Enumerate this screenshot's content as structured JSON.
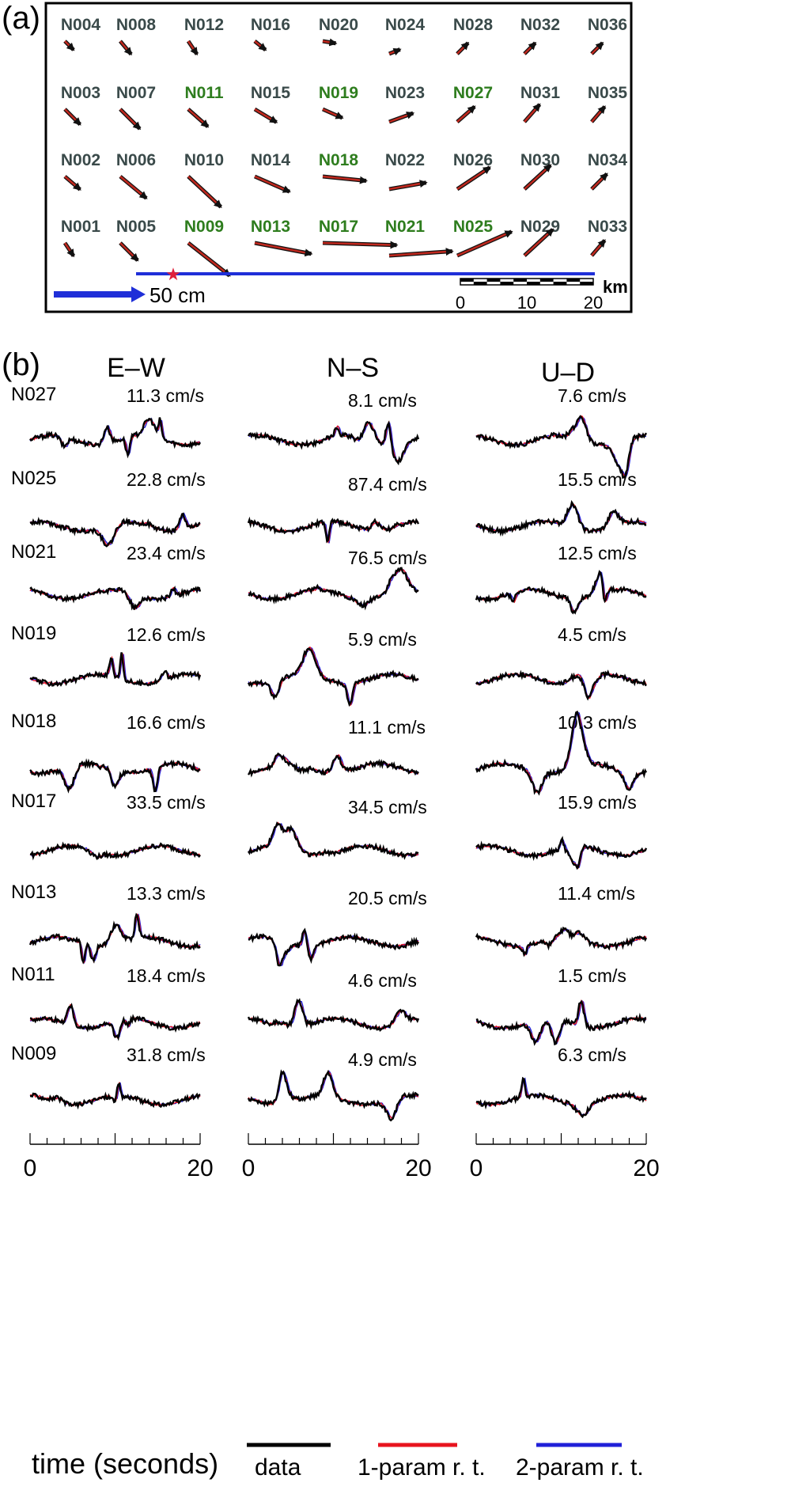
{
  "panel_a": {
    "label": "(a)",
    "colors": {
      "default_station": "#3a4a4a",
      "highlight_station": "#2e7d1e",
      "arrow_fill": "#c0281e",
      "arrow_edge": "#111111",
      "fault": "#1f2fd8",
      "epicenter": "#e0203a"
    },
    "stations": [
      {
        "name": "N004",
        "col": 0,
        "row": 0,
        "hl": false,
        "dx": 0.2,
        "dy": 0.2
      },
      {
        "name": "N008",
        "col": 1,
        "row": 0,
        "hl": false,
        "dx": 0.25,
        "dy": 0.3
      },
      {
        "name": "N012",
        "col": 2,
        "row": 0,
        "hl": false,
        "dx": 0.2,
        "dy": 0.3
      },
      {
        "name": "N016",
        "col": 3,
        "row": 0,
        "hl": false,
        "dx": 0.25,
        "dy": 0.2
      },
      {
        "name": "N020",
        "col": 4,
        "row": 0,
        "hl": false,
        "dx": 0.3,
        "dy": 0.05
      },
      {
        "name": "N024",
        "col": 5,
        "row": 0,
        "hl": false,
        "dx": 0.25,
        "dy": -0.1
      },
      {
        "name": "N028",
        "col": 6,
        "row": 0,
        "hl": false,
        "dx": 0.25,
        "dy": -0.25
      },
      {
        "name": "N032",
        "col": 7,
        "row": 0,
        "hl": false,
        "dx": 0.25,
        "dy": -0.25
      },
      {
        "name": "N036",
        "col": 8,
        "row": 0,
        "hl": false,
        "dx": 0.25,
        "dy": -0.25
      },
      {
        "name": "N003",
        "col": 0,
        "row": 1,
        "hl": false,
        "dx": 0.35,
        "dy": 0.35
      },
      {
        "name": "N007",
        "col": 1,
        "row": 1,
        "hl": false,
        "dx": 0.45,
        "dy": 0.45
      },
      {
        "name": "N011",
        "col": 2,
        "row": 1,
        "hl": true,
        "dx": 0.45,
        "dy": 0.4
      },
      {
        "name": "N015",
        "col": 3,
        "row": 1,
        "hl": false,
        "dx": 0.5,
        "dy": 0.3
      },
      {
        "name": "N019",
        "col": 4,
        "row": 1,
        "hl": true,
        "dx": 0.45,
        "dy": 0.2
      },
      {
        "name": "N023",
        "col": 5,
        "row": 1,
        "hl": false,
        "dx": 0.55,
        "dy": -0.2
      },
      {
        "name": "N027",
        "col": 6,
        "row": 1,
        "hl": true,
        "dx": 0.4,
        "dy": -0.35
      },
      {
        "name": "N031",
        "col": 7,
        "row": 1,
        "hl": false,
        "dx": 0.35,
        "dy": -0.4
      },
      {
        "name": "N035",
        "col": 8,
        "row": 1,
        "hl": false,
        "dx": 0.3,
        "dy": -0.35
      },
      {
        "name": "N002",
        "col": 0,
        "row": 2,
        "hl": false,
        "dx": 0.35,
        "dy": 0.3
      },
      {
        "name": "N006",
        "col": 1,
        "row": 2,
        "hl": false,
        "dx": 0.6,
        "dy": 0.5
      },
      {
        "name": "N010",
        "col": 2,
        "row": 2,
        "hl": false,
        "dx": 0.75,
        "dy": 0.7
      },
      {
        "name": "N014",
        "col": 3,
        "row": 2,
        "hl": false,
        "dx": 0.8,
        "dy": 0.35
      },
      {
        "name": "N018",
        "col": 4,
        "row": 2,
        "hl": true,
        "dx": 1.0,
        "dy": 0.1
      },
      {
        "name": "N022",
        "col": 5,
        "row": 2,
        "hl": false,
        "dx": 0.85,
        "dy": -0.15
      },
      {
        "name": "N026",
        "col": 6,
        "row": 2,
        "hl": false,
        "dx": 0.75,
        "dy": -0.5
      },
      {
        "name": "N030",
        "col": 7,
        "row": 2,
        "hl": false,
        "dx": 0.6,
        "dy": -0.55
      },
      {
        "name": "N034",
        "col": 8,
        "row": 2,
        "hl": false,
        "dx": 0.35,
        "dy": -0.35
      },
      {
        "name": "N001",
        "col": 0,
        "row": 3,
        "hl": false,
        "dx": 0.2,
        "dy": 0.3
      },
      {
        "name": "N005",
        "col": 1,
        "row": 3,
        "hl": false,
        "dx": 0.4,
        "dy": 0.4
      },
      {
        "name": "N009",
        "col": 2,
        "row": 3,
        "hl": true,
        "dx": 0.95,
        "dy": 0.75
      },
      {
        "name": "N013",
        "col": 3,
        "row": 3,
        "hl": true,
        "dx": 1.3,
        "dy": 0.25
      },
      {
        "name": "N017",
        "col": 4,
        "row": 3,
        "hl": true,
        "dx": 1.7,
        "dy": 0.05
      },
      {
        "name": "N021",
        "col": 5,
        "row": 3,
        "hl": true,
        "dx": 1.45,
        "dy": -0.1
      },
      {
        "name": "N025",
        "col": 6,
        "row": 3,
        "hl": true,
        "dx": 1.25,
        "dy": -0.55
      },
      {
        "name": "N029",
        "col": 7,
        "row": 3,
        "hl": false,
        "dx": 0.65,
        "dy": -0.6
      },
      {
        "name": "N033",
        "col": 8,
        "row": 3,
        "hl": false,
        "dx": 0.3,
        "dy": -0.35
      }
    ],
    "reference_arrow_label": "50 cm",
    "scalebar": {
      "ticks": [
        "0",
        "10",
        "20"
      ],
      "unit": "km"
    }
  },
  "panel_b": {
    "label": "(b)",
    "components": [
      "E–W",
      "N–S",
      "U–D"
    ],
    "x_axis": {
      "range": [
        0,
        20
      ],
      "ticks": [
        "0",
        "20"
      ],
      "label": "time (seconds)"
    },
    "legend": [
      {
        "label": "data",
        "color": "#000000"
      },
      {
        "label": "1-param r. t.",
        "color": "#e8141e"
      },
      {
        "label": "2-param r. t.",
        "color": "#2020d8"
      }
    ],
    "stations": [
      {
        "name": "N027",
        "peaks": [
          "11.3 cm/s",
          "8.1 cm/s",
          "7.6 cm/s"
        ]
      },
      {
        "name": "N025",
        "peaks": [
          "22.8 cm/s",
          "87.4 cm/s",
          "15.5 cm/s"
        ]
      },
      {
        "name": "N021",
        "peaks": [
          "23.4 cm/s",
          "76.5 cm/s",
          "12.5 cm/s"
        ]
      },
      {
        "name": "N019",
        "peaks": [
          "12.6 cm/s",
          "5.9 cm/s",
          "4.5 cm/s"
        ]
      },
      {
        "name": "N018",
        "peaks": [
          "16.6 cm/s",
          "11.1 cm/s",
          "10.3 cm/s"
        ]
      },
      {
        "name": "N017",
        "peaks": [
          "33.5 cm/s",
          "34.5 cm/s",
          "15.9 cm/s"
        ]
      },
      {
        "name": "N013",
        "peaks": [
          "13.3 cm/s",
          "20.5 cm/s",
          "11.4 cm/s"
        ]
      },
      {
        "name": "N011",
        "peaks": [
          "18.4 cm/s",
          "4.6 cm/s",
          "1.5 cm/s"
        ]
      },
      {
        "name": "N009",
        "peaks": [
          "31.8 cm/s",
          "4.9 cm/s",
          "6.3 cm/s"
        ]
      }
    ]
  },
  "chart_data": [
    {
      "type": "scatter",
      "title": "",
      "series": [
        {
          "name": "",
          "values": []
        }
      ],
      "categories": [
        "N001",
        "N002",
        "N003",
        "N004",
        "N005",
        "N006",
        "N007",
        "N008",
        "N009",
        "N010",
        "N011",
        "N012",
        "N013",
        "N014",
        "N015",
        "N016",
        "N017",
        "N018",
        "N019",
        "N020",
        "N021",
        "N022",
        "N023",
        "N024",
        "N025",
        "N026",
        "N027",
        "N028",
        "N029",
        "N030",
        "N031",
        "N032",
        "N033",
        "N034",
        "N035",
        "N036"
      ],
      "x_scale_km": [
        0,
        20
      ]
    },
    {
      "type": "line",
      "title": "",
      "xlabel": "time (seconds)",
      "xlim": [
        0,
        20
      ],
      "series_names": [
        "data",
        "1-param r. t.",
        "2-param r. t."
      ],
      "components": [
        "E–W",
        "N–S",
        "U–D"
      ]
    }
  ]
}
